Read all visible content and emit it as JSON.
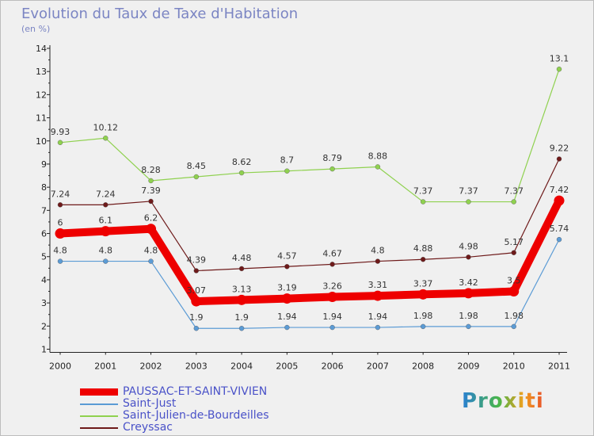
{
  "chart_data": {
    "type": "line",
    "title": "Evolution du Taux de Taxe d'Habitation",
    "subtitle": "(en %)",
    "x": [
      "2000",
      "2001",
      "2002",
      "2003",
      "2004",
      "2005",
      "2006",
      "2007",
      "2008",
      "2009",
      "2010",
      "2011"
    ],
    "y_ticks": [
      "1",
      "2",
      "3",
      "4",
      "5",
      "6",
      "7",
      "8",
      "9",
      "10",
      "11",
      "12",
      "13",
      "14"
    ],
    "ylim": [
      1,
      14
    ],
    "grid": false,
    "legend_position": "bottom-left",
    "series": [
      {
        "name": "PAUSSAC-ET-SAINT-VIVIEN",
        "color": "#ee0000",
        "values": [
          6,
          6.1,
          6.2,
          3.07,
          3.13,
          3.19,
          3.26,
          3.31,
          3.37,
          3.42,
          3.5,
          7.42
        ],
        "labels": [
          "6",
          "6.1",
          "6.2",
          "3.07",
          "3.13",
          "3.19",
          "3.26",
          "3.31",
          "3.37",
          "3.42",
          "3.5",
          "7.42"
        ]
      },
      {
        "name": "Saint-Just",
        "color": "#5b9bd5",
        "values": [
          4.8,
          4.8,
          4.8,
          1.9,
          1.9,
          1.94,
          1.94,
          1.94,
          1.98,
          1.98,
          1.98,
          5.74
        ],
        "labels": [
          "4.8",
          "4.8",
          "4.8",
          "1.9",
          "1.9",
          "1.94",
          "1.94",
          "1.94",
          "1.98",
          "1.98",
          "1.98",
          "5.74"
        ]
      },
      {
        "name": "Saint-Julien-de-Bourdeilles",
        "color": "#8fd14f",
        "values": [
          9.93,
          10.12,
          8.28,
          8.45,
          8.62,
          8.7,
          8.79,
          8.88,
          7.37,
          7.37,
          7.37,
          13.1
        ],
        "labels": [
          "9.93",
          "10.12",
          "8.28",
          "8.45",
          "8.62",
          "8.7",
          "8.79",
          "8.88",
          "7.37",
          "7.37",
          "7.37",
          "13.1"
        ]
      },
      {
        "name": "Creyssac",
        "color": "#6e1a1a",
        "values": [
          7.24,
          7.24,
          7.39,
          4.39,
          4.48,
          4.57,
          4.67,
          4.8,
          4.88,
          4.98,
          5.17,
          9.22
        ],
        "labels": [
          "7.24",
          "7.24",
          "7.39",
          "4.39",
          "4.48",
          "4.57",
          "4.67",
          "4.8",
          "4.88",
          "4.98",
          "5.17",
          "9.22"
        ]
      }
    ]
  },
  "logo": {
    "text": "Proxiti"
  }
}
